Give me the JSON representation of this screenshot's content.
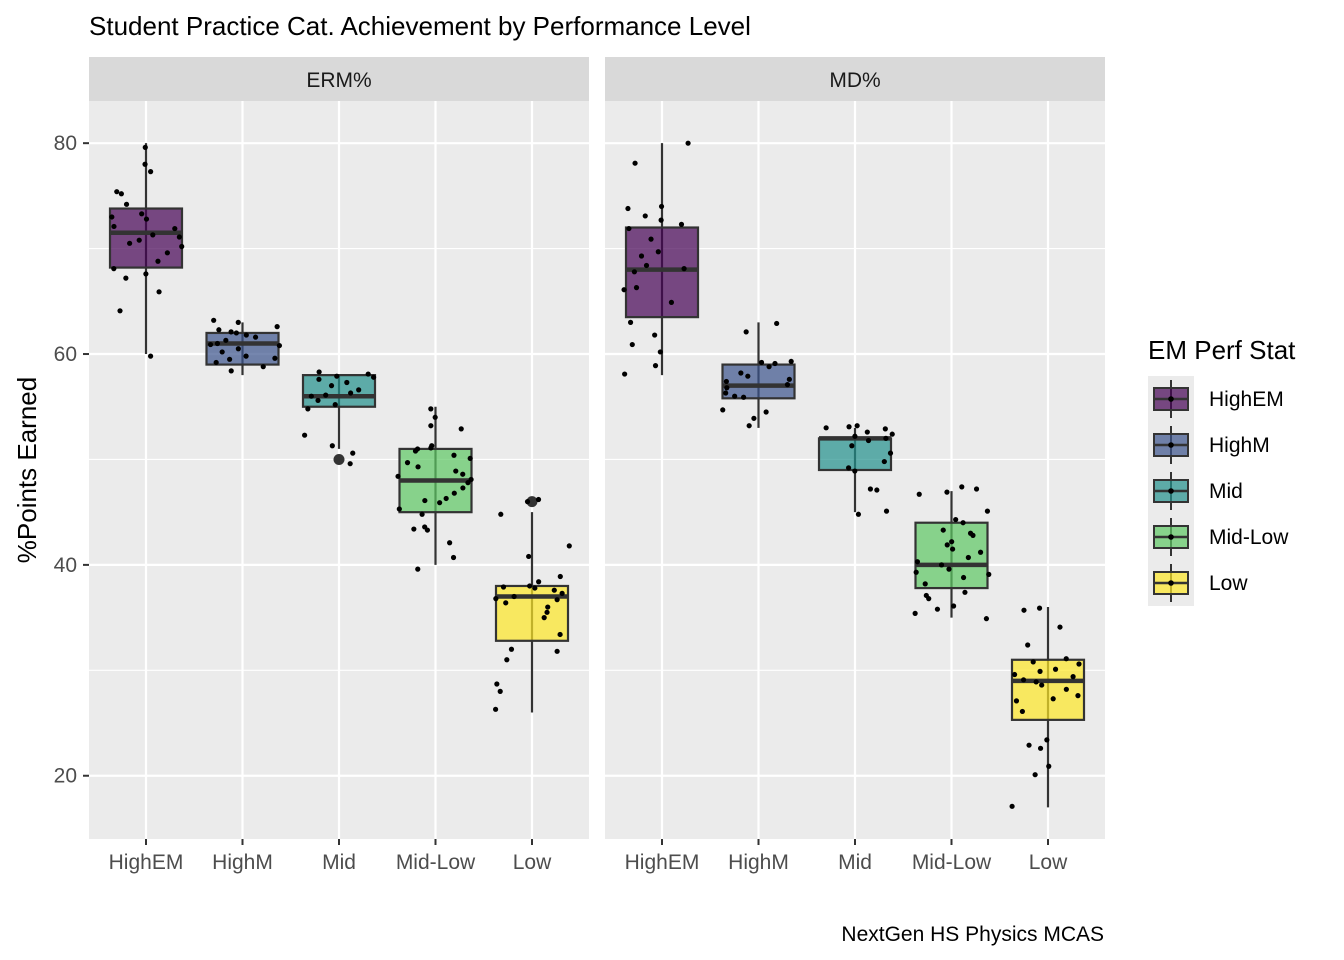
{
  "chart_data": {
    "type": "boxplot",
    "title": "Student Practice Cat. Achievement by Performance Level",
    "ylabel": "%Points Earned",
    "xlabel": "",
    "caption": "NextGen HS Physics MCAS",
    "ylim": [
      14,
      84
    ],
    "yticks": [
      20,
      40,
      60,
      80
    ],
    "categories": [
      "HighEM",
      "HighM",
      "Mid",
      "Mid-Low",
      "Low"
    ],
    "legend": {
      "title": "EM Perf Stat",
      "placement": "right",
      "entries": [
        "HighEM",
        "HighM",
        "Mid",
        "Mid-Low",
        "Low"
      ]
    },
    "colors": {
      "HighEM": "#440154",
      "HighM": "#3B528B",
      "Mid": "#21908C",
      "Mid-Low": "#5DC863",
      "Low": "#FDE725",
      "panel_bg": "#EBEBEB",
      "strip_bg": "#D9D9D9",
      "grid": "#FFFFFF"
    },
    "panels": [
      {
        "name": "ERM%",
        "boxes": [
          {
            "category": "HighEM",
            "min": 60,
            "q1": 68.2,
            "median": 71.5,
            "q3": 73.8,
            "max": 80,
            "outliers": [],
            "points": [
              79.6,
              77.3,
              75.4,
              74.2,
              73.3,
              72.8,
              72.1,
              71.9,
              71.3,
              70.8,
              70.5,
              69.6,
              68.8,
              68.1,
              67.6,
              67.2,
              65.9,
              64.1,
              59.8,
              78,
              75.2,
              73,
              71.1,
              70.2
            ]
          },
          {
            "category": "HighM",
            "min": 58,
            "q1": 59,
            "median": 61,
            "q3": 62,
            "max": 63,
            "outliers": [],
            "points": [
              63.2,
              63,
              62.6,
              62.3,
              62,
              61.8,
              61.6,
              61.3,
              61,
              60.8,
              60.5,
              60.2,
              59.8,
              59.5,
              59.2,
              58.8,
              58.4,
              62.1,
              60.9,
              59.6
            ]
          },
          {
            "category": "Mid",
            "min": 51,
            "q1": 55,
            "median": 56,
            "q3": 58,
            "max": 58,
            "outliers": [
              50
            ],
            "points": [
              58.3,
              58.1,
              57.9,
              57.6,
              57.3,
              57,
              56.6,
              56.3,
              56,
              55.6,
              55.2,
              54.8,
              52.3,
              51.3,
              50.6,
              49.6,
              57.8,
              56.1
            ]
          },
          {
            "category": "Mid-Low",
            "min": 40,
            "q1": 45,
            "median": 48,
            "q3": 51,
            "max": 55,
            "outliers": [],
            "points": [
              54.8,
              54,
              53.2,
              52.9,
              51.3,
              51.1,
              51,
              50.8,
              50.4,
              49.7,
              49.3,
              48.9,
              48.6,
              48.1,
              47.8,
              47.3,
              46.8,
              46.3,
              45.9,
              45.3,
              44.8,
              43.6,
              43.4,
              43.3,
              42.1,
              40.7,
              39.6,
              50.1,
              48.4,
              46.1
            ]
          },
          {
            "category": "Low",
            "min": 26,
            "q1": 32.8,
            "median": 37,
            "q3": 38,
            "max": 45,
            "outliers": [
              46
            ],
            "points": [
              46.2,
              46,
              44.8,
              41.8,
              40.8,
              38.9,
              38.4,
              38,
              37.9,
              37.6,
              37.3,
              37,
              36.8,
              36.4,
              36,
              35.5,
              35,
              33.4,
              32,
              31.8,
              31,
              28.7,
              28,
              26.3,
              37.8,
              36.7
            ]
          }
        ]
      },
      {
        "name": "MD%",
        "boxes": [
          {
            "category": "HighEM",
            "min": 58,
            "q1": 63.5,
            "median": 68,
            "q3": 72,
            "max": 80,
            "outliers": [],
            "points": [
              80,
              78.1,
              74,
              73.8,
              73.1,
              72.7,
              71.9,
              70.9,
              69.3,
              68.4,
              68.1,
              67.8,
              66.3,
              66.1,
              64.9,
              63,
              61.8,
              60.9,
              60.2,
              58.9,
              58.1,
              72.3,
              69.7
            ]
          },
          {
            "category": "HighM",
            "min": 53,
            "q1": 55.8,
            "median": 57,
            "q3": 59,
            "max": 63,
            "outliers": [],
            "points": [
              62.9,
              62.1,
              59.3,
              59.1,
              58.8,
              58.2,
              57.9,
              57.4,
              57.1,
              56.8,
              56.3,
              56,
              55.9,
              54.7,
              54.5,
              53.9,
              53.2,
              59.2,
              57.6
            ]
          },
          {
            "category": "Mid",
            "min": 45,
            "q1": 49,
            "median": 52,
            "q3": 52,
            "max": 53,
            "outliers": [],
            "points": [
              53.2,
              53.1,
              53,
              52.9,
              52.6,
              52.2,
              52,
              51.8,
              51.3,
              50.6,
              49.8,
              49.2,
              48.9,
              47.2,
              47.1,
              45.1,
              44.8,
              52.4
            ]
          },
          {
            "category": "Mid-Low",
            "min": 35,
            "q1": 37.8,
            "median": 40,
            "q3": 44,
            "max": 47,
            "outliers": [],
            "points": [
              47.4,
              47.2,
              46.9,
              46.7,
              45.1,
              44.3,
              44,
              43.3,
              43,
              42.8,
              42.2,
              41.9,
              41.2,
              40.7,
              40.3,
              40,
              39.6,
              39.1,
              38.8,
              38.2,
              37.4,
              37.1,
              36.8,
              36.1,
              35.8,
              35.4,
              34.9,
              41.5,
              39.3
            ]
          },
          {
            "category": "Low",
            "min": 17,
            "q1": 25.3,
            "median": 29,
            "q3": 31,
            "max": 36,
            "outliers": [],
            "points": [
              35.9,
              35.7,
              34.1,
              32.4,
              31.1,
              30.8,
              30.6,
              30.1,
              29.9,
              29.4,
              29.1,
              28.9,
              28.6,
              27.6,
              27.3,
              27.1,
              26.1,
              23.4,
              22.9,
              22.6,
              20.9,
              20.1,
              17.1,
              29.6,
              28.2
            ]
          }
        ]
      }
    ]
  }
}
